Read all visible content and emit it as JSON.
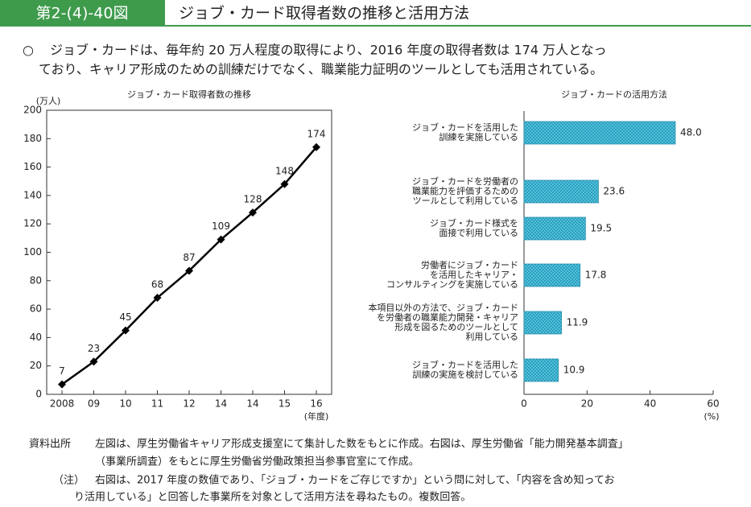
{
  "header": {
    "figure_number": "第2-(4)-40図",
    "title": "ジョブ・カード取得者数の推移と活用方法"
  },
  "summary": {
    "bullet": "○",
    "lines": [
      "ジョブ・カードは、毎年約 20 万人程度の取得により、2016 年度の取得者数は 174 万人となっ",
      "ており、キャリア形成のための訓練だけでなく、職業能力証明のツールとしても活用されている。"
    ]
  },
  "chart_data": [
    {
      "type": "line",
      "title": "ジョブ・カード取得者数の推移",
      "y_label": "(万人)",
      "x_label": "(年度)",
      "categories": [
        "2008",
        "09",
        "10",
        "11",
        "12",
        "14",
        "14",
        "15",
        "16"
      ],
      "values": [
        7,
        23,
        45,
        68,
        87,
        109,
        128,
        148,
        174
      ],
      "color": "#000000",
      "ylim": [
        0,
        200
      ],
      "yticks": [
        0,
        20,
        40,
        60,
        80,
        100,
        120,
        140,
        160,
        180,
        200
      ]
    },
    {
      "type": "bar",
      "horizontal": true,
      "title": "ジョブ・カードの活用方法",
      "x_label": "(%)",
      "categories": [
        [
          "ジョブ・カードを活用した",
          "訓練を実施している"
        ],
        [
          "ジョブ・カードを労働者の",
          "職業能力を評価するための",
          "ツールとして利用している"
        ],
        [
          "ジョブ・カード様式を",
          "面接で利用している"
        ],
        [
          "労働者にジョブ・カード",
          "を活用したキャリア・",
          "コンサルティングを実施している"
        ],
        [
          "本項目以外の方法で、ジョブ・カード",
          "を労働者の職業能力開発・キャリア",
          "形成を図るためのツールとして",
          "利用している"
        ],
        [
          "ジョブ・カードを活用した",
          "訓練の実施を検討している"
        ]
      ],
      "values": [
        48.0,
        23.6,
        19.5,
        17.8,
        11.9,
        10.9
      ],
      "value_labels": [
        "48.0",
        "23.6",
        "19.5",
        "17.8",
        "11.9",
        "10.9"
      ],
      "color": "#4cc3dd",
      "xlim": [
        0,
        60
      ],
      "xticks": [
        0,
        20,
        40,
        60
      ]
    }
  ],
  "notes": {
    "source_label": "資料出所",
    "source_lines": [
      "左図は、厚生労働省キャリア形成支援室にて集計した数をもとに作成。右図は、厚生労働省「能力開発基本調査」",
      "（事業所調査）をもとに厚生労働省労働政策担当参事官室にて作成。"
    ],
    "note_label": "（注）",
    "note_lines": [
      "右図は、2017 年度の数値であり、「ジョブ・カードをご存じですか」という問に対して、「内容を含め知ってお",
      "り活用している」と回答した事業所を対象として活用方法を尋ねたもの。複数回答。"
    ]
  }
}
